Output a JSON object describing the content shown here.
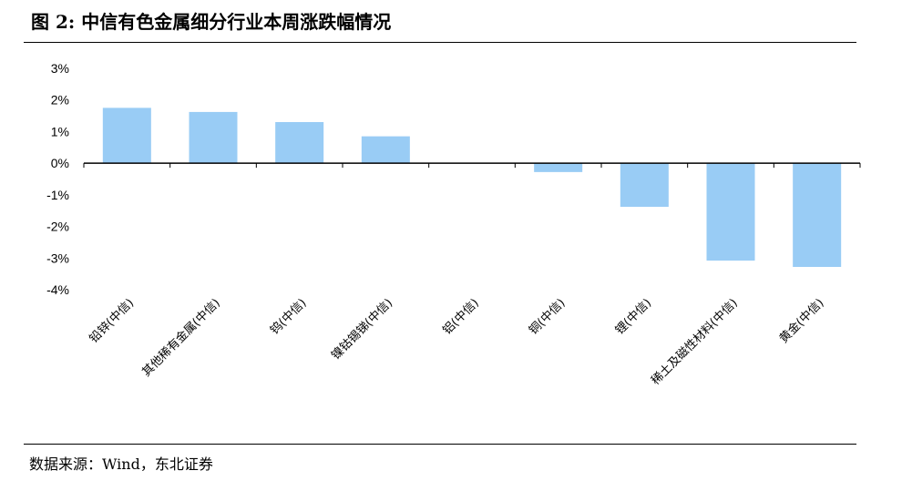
{
  "header": {
    "title": "图  2:  中信有色金属细分行业本周涨跌幅情况"
  },
  "footer": {
    "source": "数据来源：Wind，东北证券"
  },
  "colors": {
    "bar": "#99ccf5",
    "axis": "#000000"
  },
  "chart_data": {
    "type": "bar",
    "title": "",
    "xlabel": "",
    "ylabel": "",
    "ylim": [
      -4,
      3
    ],
    "yticks": [
      3,
      2,
      1,
      0,
      -1,
      -2,
      -3,
      -4
    ],
    "ytick_labels": [
      "3%",
      "2%",
      "1%",
      "0%",
      "-1%",
      "-2%",
      "-3%",
      "-4%"
    ],
    "grid": false,
    "categories": [
      "铅锌(中信)",
      "其他稀有金属(中信)",
      "钨(中信)",
      "镍钴锡锑(中信)",
      "铝(中信)",
      "铜(中信)",
      "锂(中信)",
      "稀土及磁性材料(中信)",
      "黄金(中信)"
    ],
    "values": [
      1.75,
      1.62,
      1.3,
      0.85,
      0.0,
      -0.28,
      -1.38,
      -3.08,
      -3.28
    ]
  }
}
